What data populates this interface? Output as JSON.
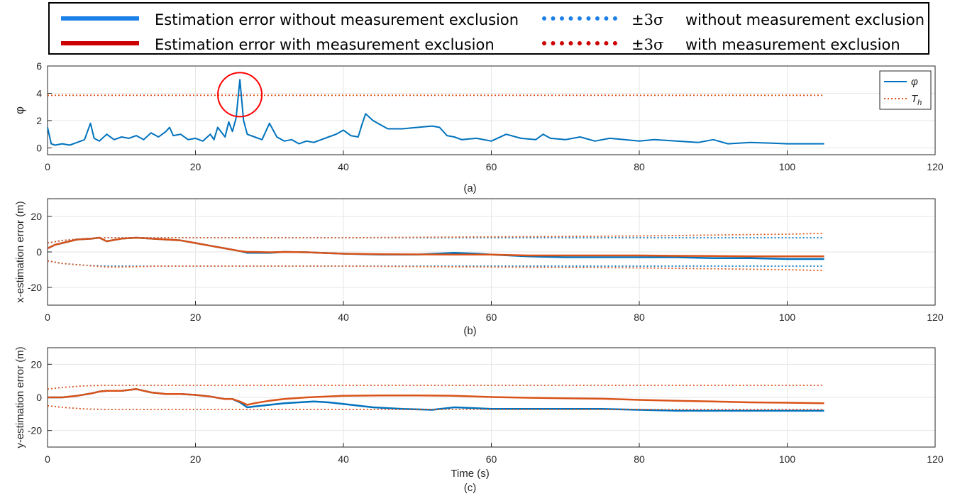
{
  "legend": {
    "items": [
      {
        "label": "Estimation error without measurement exclusion",
        "color": "#1a7fe6",
        "style": "solid"
      },
      {
        "label": "Estimation error with measurement exclusion",
        "color": "#cc0000",
        "style": "solid"
      },
      {
        "symbol": "±3σ",
        "label": "without measurement exclusion",
        "color": "#1a7fe6",
        "style": "dotted"
      },
      {
        "symbol": "±3σ",
        "label": "with measurement exclusion",
        "color": "#cc0000",
        "style": "dotted"
      }
    ]
  },
  "colors": {
    "blue": "#0072BD",
    "orange": "#D95319",
    "highlight": "#ff0000",
    "grid": "#e6e6e6"
  },
  "chart_data": [
    {
      "type": "line",
      "caption": "(a)",
      "xlabel": "",
      "ylabel": "φ",
      "xlim": [
        0,
        120
      ],
      "ylim": [
        -0.5,
        6
      ],
      "xticks": [
        0,
        20,
        40,
        60,
        80,
        100,
        120
      ],
      "yticks": [
        0,
        2,
        4,
        6
      ],
      "grid": true,
      "legend": {
        "position": "top-right",
        "entries": [
          "φ",
          "T_h"
        ]
      },
      "series": [
        {
          "name": "φ",
          "style": "solid",
          "color": "#0072BD",
          "x": [
            0,
            0.5,
            1,
            2,
            3,
            4,
            5,
            5.8,
            6.3,
            7,
            8,
            9,
            10,
            11,
            12,
            13,
            14,
            15,
            16,
            16.5,
            17,
            18,
            19,
            20,
            21,
            22,
            22.5,
            23,
            24,
            24.5,
            25,
            25.5,
            26,
            26.5,
            27,
            28,
            29,
            30,
            31,
            32,
            33,
            34,
            35,
            36,
            37,
            38,
            39,
            40,
            41,
            42,
            42.5,
            43,
            44,
            45,
            46,
            48,
            50,
            52,
            53,
            54,
            55,
            56,
            58,
            60,
            62,
            64,
            66,
            67,
            68,
            70,
            72,
            74,
            76,
            78,
            80,
            82,
            85,
            88,
            90,
            92,
            95,
            98,
            100,
            102,
            105
          ],
          "y": [
            1.5,
            0.3,
            0.2,
            0.3,
            0.2,
            0.4,
            0.6,
            1.8,
            0.7,
            0.5,
            1.0,
            0.6,
            0.8,
            0.7,
            0.9,
            0.6,
            1.1,
            0.8,
            1.2,
            1.5,
            0.9,
            1.0,
            0.6,
            0.7,
            0.5,
            1.0,
            0.6,
            1.5,
            0.8,
            1.9,
            1.2,
            2.2,
            5.0,
            2.0,
            1.0,
            0.8,
            0.6,
            1.8,
            0.8,
            0.5,
            0.6,
            0.3,
            0.5,
            0.4,
            0.6,
            0.8,
            1.0,
            1.3,
            0.9,
            0.8,
            1.7,
            2.5,
            2.0,
            1.7,
            1.4,
            1.4,
            1.5,
            1.6,
            1.5,
            0.9,
            0.8,
            0.6,
            0.7,
            0.5,
            1.0,
            0.7,
            0.6,
            1.0,
            0.7,
            0.6,
            0.8,
            0.5,
            0.7,
            0.6,
            0.5,
            0.6,
            0.5,
            0.4,
            0.6,
            0.3,
            0.4,
            0.35,
            0.3,
            0.3,
            0.3
          ]
        },
        {
          "name": "T_h",
          "style": "dotted",
          "color": "#D95319",
          "x": [
            0,
            105
          ],
          "y": [
            3.85,
            3.85
          ]
        }
      ],
      "annotations": [
        {
          "type": "circle",
          "x": 26,
          "y": 3.9,
          "color": "#ff0000"
        }
      ]
    },
    {
      "type": "line",
      "caption": "(b)",
      "xlabel": "",
      "ylabel": "x-estimation error (m)",
      "xlim": [
        0,
        120
      ],
      "ylim": [
        -30,
        30
      ],
      "xticks": [
        0,
        20,
        40,
        60,
        80,
        100,
        120
      ],
      "yticks": [
        -20,
        0,
        20
      ],
      "grid": true,
      "series": [
        {
          "name": "",
          "style": "solid",
          "color": "#0072BD",
          "x": [
            0,
            1,
            2,
            3,
            4,
            6,
            7,
            8,
            10,
            12,
            14,
            16,
            18,
            20,
            22,
            24,
            26,
            27,
            28,
            30,
            32,
            35,
            40,
            45,
            50,
            55,
            58,
            60,
            65,
            70,
            75,
            80,
            85,
            90,
            95,
            100,
            105
          ],
          "y": [
            2,
            4,
            5,
            6,
            7,
            7.5,
            8,
            6,
            7.5,
            8,
            7.5,
            7,
            6.5,
            5,
            3.5,
            2,
            0.5,
            -0.5,
            -0.5,
            -0.5,
            0,
            -0.2,
            -1,
            -1.5,
            -1.5,
            -0.5,
            -1,
            -1.5,
            -2.5,
            -3,
            -3,
            -3,
            -3,
            -3.5,
            -3.5,
            -4,
            -4
          ]
        },
        {
          "name": "",
          "style": "solid",
          "color": "#D95319",
          "x": [
            0,
            1,
            2,
            3,
            4,
            6,
            7,
            8,
            10,
            12,
            14,
            16,
            18,
            20,
            22,
            24,
            26,
            27,
            28,
            30,
            32,
            35,
            40,
            45,
            50,
            55,
            58,
            60,
            65,
            70,
            75,
            80,
            85,
            90,
            95,
            100,
            105
          ],
          "y": [
            2,
            4,
            5,
            6,
            7,
            7.5,
            8,
            6,
            7.5,
            8,
            7.5,
            7,
            6.5,
            5,
            3.5,
            2,
            0.5,
            0,
            0,
            -0.2,
            0,
            -0.2,
            -1,
            -1.3,
            -1.4,
            -1.5,
            -1.5,
            -1.5,
            -2,
            -2,
            -2,
            -2,
            -2.2,
            -2.3,
            -2.5,
            -2.5,
            -2.5
          ]
        },
        {
          "name": "",
          "style": "dotted",
          "color": "#0072BD",
          "x": [
            0,
            2,
            5,
            8,
            10,
            15,
            20,
            25,
            30,
            40,
            60,
            80,
            105
          ],
          "y": [
            5,
            6.5,
            7.5,
            8,
            8,
            8,
            8,
            8,
            8,
            8,
            8,
            8,
            8
          ]
        },
        {
          "name": "",
          "style": "dotted",
          "color": "#0072BD",
          "x": [
            0,
            2,
            5,
            8,
            10,
            15,
            20,
            25,
            30,
            40,
            60,
            80,
            105
          ],
          "y": [
            -5,
            -6.5,
            -7.5,
            -8,
            -8,
            -8,
            -8,
            -8,
            -8,
            -8,
            -8,
            -8,
            -8
          ]
        },
        {
          "name": "",
          "style": "dotted",
          "color": "#D95319",
          "x": [
            0,
            2,
            5,
            8,
            10,
            15,
            20,
            25,
            30,
            40,
            60,
            80,
            100,
            105
          ],
          "y": [
            5,
            6.5,
            7.5,
            8,
            8,
            8,
            8,
            8,
            8,
            8,
            8.5,
            9,
            10,
            10.5
          ]
        },
        {
          "name": "",
          "style": "dotted",
          "color": "#D95319",
          "x": [
            0,
            2,
            5,
            8,
            10,
            15,
            20,
            25,
            30,
            40,
            60,
            80,
            100,
            105
          ],
          "y": [
            -5,
            -6.5,
            -7.5,
            -8.5,
            -8.5,
            -8,
            -8,
            -8,
            -8,
            -8,
            -8.5,
            -9,
            -10,
            -10.5
          ]
        }
      ]
    },
    {
      "type": "line",
      "caption": "(c)",
      "xlabel": "Time (s)",
      "ylabel": "y-estimation error (m)",
      "xlim": [
        0,
        120
      ],
      "ylim": [
        -30,
        30
      ],
      "xticks": [
        0,
        20,
        40,
        60,
        80,
        100,
        120
      ],
      "yticks": [
        -20,
        0,
        20
      ],
      "grid": true,
      "series": [
        {
          "name": "",
          "style": "solid",
          "color": "#0072BD",
          "x": [
            0,
            2,
            4,
            6,
            7,
            8,
            10,
            12,
            14,
            16,
            18,
            20,
            22,
            24,
            25,
            26,
            27,
            28,
            30,
            32,
            34,
            36,
            38,
            40,
            44,
            48,
            52,
            55,
            58,
            60,
            65,
            70,
            75,
            80,
            85,
            90,
            95,
            100,
            105
          ],
          "y": [
            0,
            0,
            1,
            2.5,
            3.5,
            4,
            4,
            5,
            3,
            2,
            2,
            1.5,
            0.5,
            -1,
            -1,
            -3,
            -6,
            -5.5,
            -4.5,
            -3.5,
            -3,
            -2.5,
            -3,
            -4,
            -6,
            -7,
            -7.5,
            -6,
            -6.5,
            -7,
            -7,
            -7,
            -7,
            -7.5,
            -8,
            -8,
            -8,
            -8,
            -8
          ]
        },
        {
          "name": "",
          "style": "solid",
          "color": "#D95319",
          "x": [
            0,
            2,
            4,
            6,
            7,
            8,
            10,
            12,
            14,
            16,
            18,
            20,
            22,
            24,
            25,
            26,
            27,
            28,
            30,
            32,
            35,
            40,
            45,
            50,
            55,
            60,
            65,
            70,
            75,
            80,
            85,
            90,
            95,
            100,
            105
          ],
          "y": [
            0,
            0,
            1,
            2.5,
            3.5,
            4,
            4,
            5,
            3,
            2,
            2,
            1.5,
            0.5,
            -1,
            -1,
            -2.5,
            -4.5,
            -3.5,
            -2,
            -1,
            0,
            1,
            1.2,
            1.2,
            1,
            0.2,
            -0.2,
            -0.5,
            -0.8,
            -1.5,
            -2,
            -2.5,
            -3,
            -3.2,
            -3.5
          ]
        },
        {
          "name": "",
          "style": "dotted",
          "color": "#D95319",
          "x": [
            0,
            2,
            5,
            8,
            10,
            15,
            20,
            30,
            40,
            60,
            80,
            100,
            105
          ],
          "y": [
            5,
            6,
            7,
            7.3,
            7.3,
            7.3,
            7.3,
            7.3,
            7.3,
            7.3,
            7.3,
            7.3,
            7.3
          ]
        },
        {
          "name": "",
          "style": "dotted",
          "color": "#D95319",
          "x": [
            0,
            2,
            5,
            8,
            10,
            15,
            20,
            30,
            40,
            60,
            80,
            100,
            105
          ],
          "y": [
            -5,
            -6,
            -7,
            -7.3,
            -7.3,
            -7.3,
            -7.3,
            -7.3,
            -7.3,
            -7.3,
            -7.3,
            -7.3,
            -7.3
          ]
        }
      ]
    }
  ]
}
